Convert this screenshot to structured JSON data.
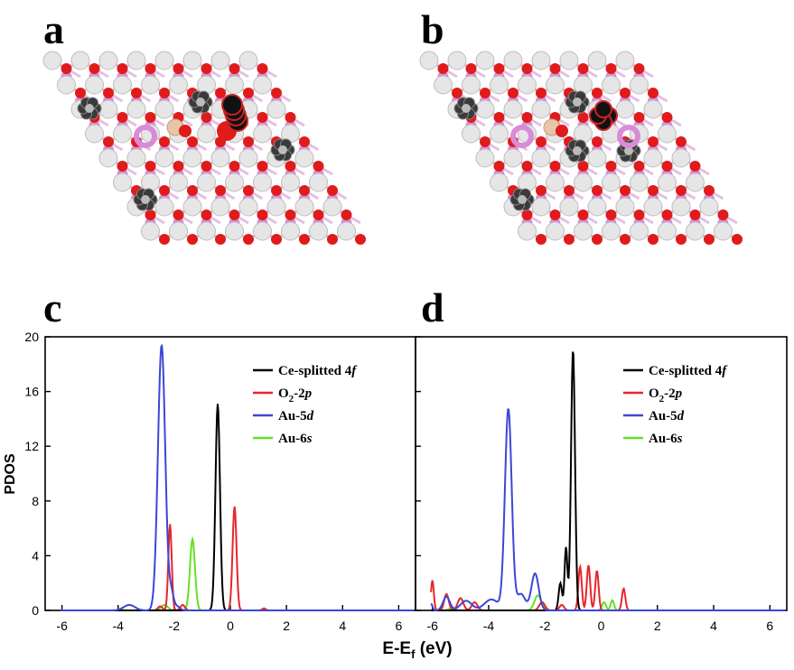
{
  "panels": {
    "a": "a",
    "b": "b",
    "c": "c",
    "d": "d"
  },
  "colors": {
    "ce": "#000000",
    "o2": "#e8262b",
    "au5d": "#3b47d6",
    "au6s": "#66e024",
    "white_atom": "#e6e6e6",
    "o_atom": "#e01b1b",
    "ce_atom": "#da8bd8",
    "au_atom": "#444444"
  },
  "chart_data": {
    "type": "line",
    "ylabel": "PDOS",
    "xlabel_main": "E-E",
    "xlabel_sub": "f",
    "xlabel_unit": " (eV)",
    "xlim": [
      -6.6,
      6.6
    ],
    "ylim": [
      0,
      20
    ],
    "x_ticks": [
      "-6",
      "-4",
      "-2",
      "0",
      "2",
      "4",
      "6"
    ],
    "y_ticks": [
      "0",
      "4",
      "8",
      "12",
      "16",
      "20"
    ],
    "legend": [
      {
        "key": "ce",
        "main": "Ce-splitted 4",
        "ital": "f",
        "sub": "",
        "tail": ""
      },
      {
        "key": "o2",
        "main": "O",
        "sub": "2",
        "tail": "-2",
        "ital": "p"
      },
      {
        "key": "au5d",
        "main": "Au-5",
        "ital": "d",
        "sub": "",
        "tail": ""
      },
      {
        "key": "au6s",
        "main": "Au-6",
        "ital": "s",
        "sub": "",
        "tail": ""
      }
    ],
    "panels": [
      {
        "id": "c",
        "series": [
          {
            "key": "au6s",
            "peaks": [
              [
                -2.35,
                0.4,
                0.12
              ],
              [
                -1.35,
                5.2,
                0.09
              ],
              [
                -3.9,
                0.05,
                0.1
              ]
            ]
          },
          {
            "key": "o2",
            "peaks": [
              [
                -2.15,
                6.3,
                0.06
              ],
              [
                0.15,
                7.6,
                0.07
              ],
              [
                -1.7,
                0.4,
                0.08
              ],
              [
                -2.5,
                0.3,
                0.08
              ],
              [
                1.2,
                0.15,
                0.06
              ]
            ]
          },
          {
            "key": "ce",
            "peaks": [
              [
                -0.45,
                15.1,
                0.08
              ]
            ]
          },
          {
            "key": "au5d",
            "peaks": [
              [
                -2.45,
                19.4,
                0.13
              ],
              [
                -2.1,
                1.2,
                0.08
              ],
              [
                -3.6,
                0.4,
                0.2
              ],
              [
                -1.9,
                0.3,
                0.1
              ]
            ]
          }
        ]
      },
      {
        "id": "d",
        "series": [
          {
            "key": "au6s",
            "peaks": [
              [
                -2.25,
                1.1,
                0.12
              ],
              [
                0.1,
                0.6,
                0.07
              ],
              [
                0.4,
                0.75,
                0.06
              ],
              [
                -5.3,
                0.2,
                0.1
              ]
            ]
          },
          {
            "key": "o2",
            "peaks": [
              [
                -6.0,
                2.2,
                0.05
              ],
              [
                -5.5,
                1.2,
                0.08
              ],
              [
                -5.0,
                0.9,
                0.1
              ],
              [
                -4.5,
                0.6,
                0.1
              ],
              [
                -0.75,
                3.2,
                0.06
              ],
              [
                -0.45,
                3.3,
                0.06
              ],
              [
                -0.15,
                2.9,
                0.06
              ],
              [
                0.8,
                1.6,
                0.06
              ],
              [
                -2.1,
                0.6,
                0.1
              ],
              [
                -1.4,
                0.4,
                0.08
              ]
            ]
          },
          {
            "key": "ce",
            "peaks": [
              [
                -1.0,
                19.1,
                0.07
              ],
              [
                -1.25,
                4.6,
                0.05
              ],
              [
                -1.45,
                2.0,
                0.06
              ]
            ]
          },
          {
            "key": "au5d",
            "peaks": [
              [
                -3.3,
                14.7,
                0.12
              ],
              [
                -2.35,
                2.7,
                0.13
              ],
              [
                -2.85,
                1.2,
                0.15
              ],
              [
                -3.9,
                0.8,
                0.25
              ],
              [
                -5.5,
                1.0,
                0.12
              ],
              [
                -4.8,
                0.7,
                0.2
              ],
              [
                -6.05,
                0.5,
                0.05
              ]
            ]
          }
        ]
      }
    ]
  }
}
